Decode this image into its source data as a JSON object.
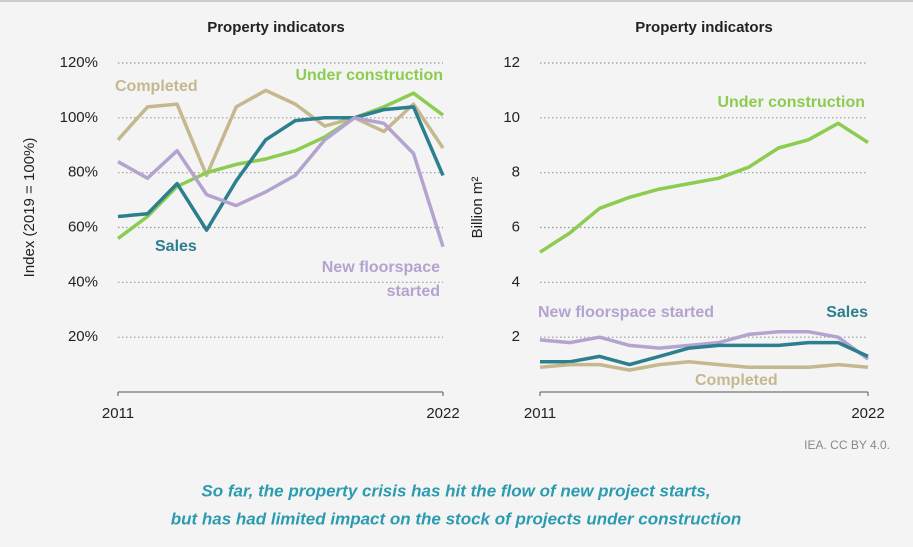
{
  "chart_data": [
    {
      "type": "line",
      "title": "Property indicators",
      "ylabel": "Index (2019 = 100%)",
      "x": [
        2011,
        2012,
        2013,
        2014,
        2015,
        2016,
        2017,
        2018,
        2019,
        2020,
        2021,
        2022
      ],
      "xlim": [
        2011,
        2022
      ],
      "xticks": [
        2011,
        2022
      ],
      "ylim": [
        0,
        120
      ],
      "yticks": [
        {
          "value": 20,
          "label": "20%"
        },
        {
          "value": 40,
          "label": "40%"
        },
        {
          "value": 60,
          "label": "60%"
        },
        {
          "value": 80,
          "label": "80%"
        },
        {
          "value": 100,
          "label": "100%"
        },
        {
          "value": 120,
          "label": "120%"
        }
      ],
      "grid": true,
      "series": [
        {
          "name": "Completed",
          "color": "#c5b88e",
          "values": [
            92,
            104,
            105,
            79,
            104,
            110,
            105,
            97,
            100,
            95,
            105,
            89
          ]
        },
        {
          "name": "Under construction",
          "color": "#8ccc50",
          "values": [
            56,
            64,
            75,
            80,
            83,
            85,
            88,
            93,
            100,
            104,
            109,
            101
          ]
        },
        {
          "name": "Sales",
          "color": "#2c7f8e",
          "values": [
            64,
            65,
            76,
            59,
            77,
            92,
            99,
            100,
            100,
            103,
            104,
            79
          ]
        },
        {
          "name": "New floorspace started",
          "color": "#b5a3cf",
          "values": [
            84,
            78,
            88,
            72,
            68,
            73,
            79,
            92,
            100,
            98,
            87,
            53
          ]
        }
      ]
    },
    {
      "type": "line",
      "title": "Property indicators",
      "ylabel": "Billion m²",
      "x": [
        2011,
        2012,
        2013,
        2014,
        2015,
        2016,
        2017,
        2018,
        2019,
        2020,
        2021,
        2022
      ],
      "xlim": [
        2011,
        2022
      ],
      "xticks": [
        2011,
        2022
      ],
      "ylim": [
        0,
        12
      ],
      "yticks": [
        2,
        4,
        6,
        8,
        10,
        12
      ],
      "grid": true,
      "series": [
        {
          "name": "Under construction",
          "color": "#8ccc50",
          "values": [
            5.1,
            5.8,
            6.7,
            7.1,
            7.4,
            7.6,
            7.8,
            8.2,
            8.9,
            9.2,
            9.8,
            9.1
          ]
        },
        {
          "name": "New floorspace started",
          "color": "#b5a3cf",
          "values": [
            1.9,
            1.8,
            2.0,
            1.7,
            1.6,
            1.7,
            1.8,
            2.1,
            2.2,
            2.2,
            2.0,
            1.2
          ]
        },
        {
          "name": "Sales",
          "color": "#2c7f8e",
          "values": [
            1.1,
            1.1,
            1.3,
            1.0,
            1.3,
            1.6,
            1.7,
            1.7,
            1.7,
            1.8,
            1.8,
            1.3
          ]
        },
        {
          "name": "Completed",
          "color": "#c5b88e",
          "values": [
            0.9,
            1.0,
            1.0,
            0.8,
            1.0,
            1.1,
            1.0,
            0.9,
            0.9,
            0.9,
            1.0,
            0.9
          ]
        }
      ]
    }
  ],
  "source": "IEA. CC BY 4.0.",
  "caption": [
    "So far, the property crisis has hit the flow of new project starts,",
    "but has had limited impact on the stock of projects under construction"
  ]
}
